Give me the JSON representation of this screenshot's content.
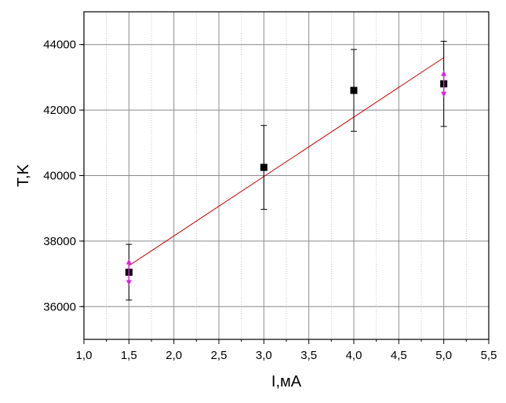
{
  "chart_data": {
    "type": "scatter",
    "xlabel": "I,мА",
    "ylabel": "T,K",
    "xlim": [
      1.0,
      5.5
    ],
    "ylim": [
      35000,
      45000
    ],
    "x_ticks": [
      "1,0",
      "1,5",
      "2,0",
      "2,5",
      "3,0",
      "3,5",
      "4,0",
      "4,5",
      "5,0",
      "5,5"
    ],
    "y_ticks": [
      "36000",
      "38000",
      "40000",
      "42000",
      "44000"
    ],
    "grid": true,
    "points": [
      {
        "x": 1.5,
        "y": 37050,
        "err": 850
      },
      {
        "x": 3.0,
        "y": 40250,
        "err": 1280
      },
      {
        "x": 4.0,
        "y": 42600,
        "err": 1250
      },
      {
        "x": 5.0,
        "y": 42800,
        "err": 1300
      }
    ],
    "fit_line": {
      "x": [
        1.5,
        5.0
      ],
      "y": [
        37250,
        43600
      ]
    },
    "colors": {
      "marker": "#000000",
      "fit": "#cc0000",
      "arrows": "#e020e0"
    }
  }
}
